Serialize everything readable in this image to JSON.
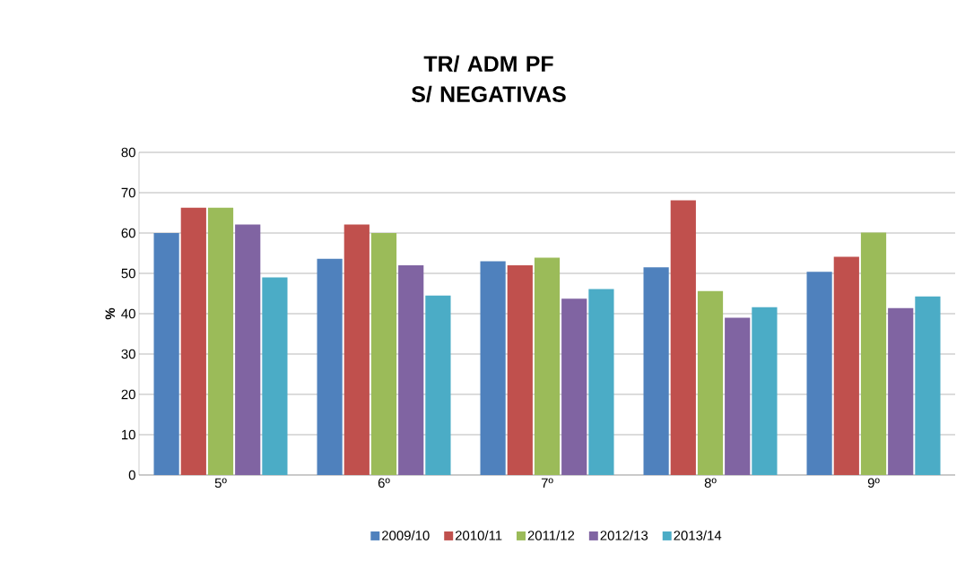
{
  "chart_data": {
    "type": "bar",
    "title": "TR/ ADM PF\nS/ NEGATIVAS",
    "ylabel": "%",
    "categories": [
      "5º",
      "6º",
      "7º",
      "8º",
      "9º"
    ],
    "series": [
      {
        "name": "2009/10",
        "color": "#4f81bd",
        "values": [
          60,
          53.6,
          53,
          51.5,
          50.4
        ]
      },
      {
        "name": "2010/11",
        "color": "#c0504d",
        "values": [
          66.3,
          62.1,
          52,
          68.1,
          54.1
        ]
      },
      {
        "name": "2011/12",
        "color": "#9bbb59",
        "values": [
          66.3,
          60,
          53.9,
          45.6,
          60.1
        ]
      },
      {
        "name": "2012/13",
        "color": "#8064a2",
        "values": [
          62.1,
          52,
          43.7,
          39,
          41.4
        ]
      },
      {
        "name": "2013/14",
        "color": "#4bacc6",
        "values": [
          49,
          44.5,
          46.1,
          41.6,
          44.3
        ]
      }
    ],
    "ylim": [
      0,
      80
    ],
    "yticks": [
      0,
      10,
      20,
      30,
      40,
      50,
      60,
      70,
      80
    ],
    "grid": "y",
    "legend": "bottom"
  }
}
